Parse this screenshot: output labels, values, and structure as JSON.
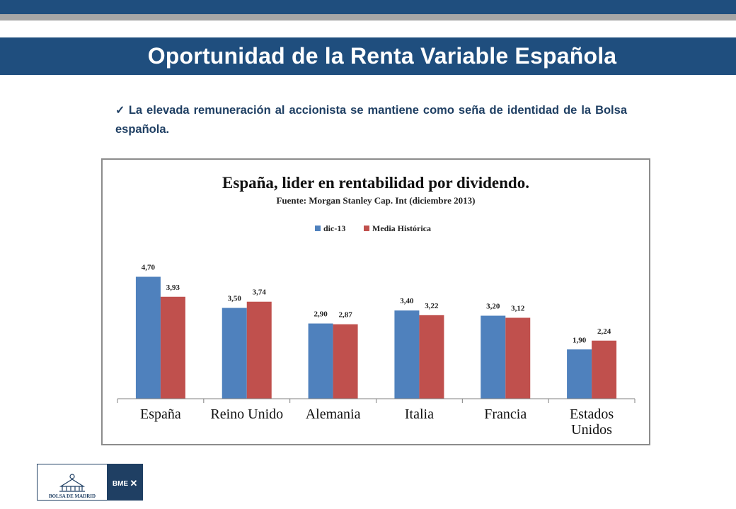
{
  "slide": {
    "title": "Oportunidad de la Renta Variable Española",
    "bullet_text": "La elevada remuneración al accionista se mantiene como seña de identidad  de la Bolsa española.",
    "bullet_icon": "checkmark-icon"
  },
  "logo": {
    "text_main": "BOLSA DE MADRID",
    "text_badge": "BME",
    "colors": {
      "left_border": "#1f3f63",
      "right_bg": "#1f3f63"
    }
  },
  "colors": {
    "header_blue": "#1f4e7e",
    "header_gray": "#a6a6a6",
    "series_1": "#4f81bd",
    "series_2": "#c0504d"
  },
  "chart_data": {
    "type": "bar",
    "title": "España, lider en rentabilidad por dividendo.",
    "subtitle": "Fuente: Morgan Stanley Cap. Int (diciembre 2013)",
    "categories": [
      "España",
      "Reino Unido",
      "Alemania",
      "Italia",
      "Francia",
      "Estados Unidos"
    ],
    "series": [
      {
        "name": "dic-13",
        "values": [
          4.7,
          3.5,
          2.9,
          3.4,
          3.2,
          1.9
        ],
        "labels": [
          "4,70",
          "3,50",
          "2,90",
          "3,40",
          "3,20",
          "1,90"
        ],
        "color": "#4f81bd"
      },
      {
        "name": "Media Histórica",
        "values": [
          3.93,
          3.74,
          2.87,
          3.22,
          3.12,
          2.24
        ],
        "labels": [
          "3,93",
          "3,74",
          "2,87",
          "3,22",
          "3,12",
          "2,24"
        ],
        "color": "#c0504d"
      }
    ],
    "ylim": [
      0,
      5
    ],
    "grid": false,
    "legend": "top-center",
    "xlabel": "",
    "ylabel": ""
  }
}
